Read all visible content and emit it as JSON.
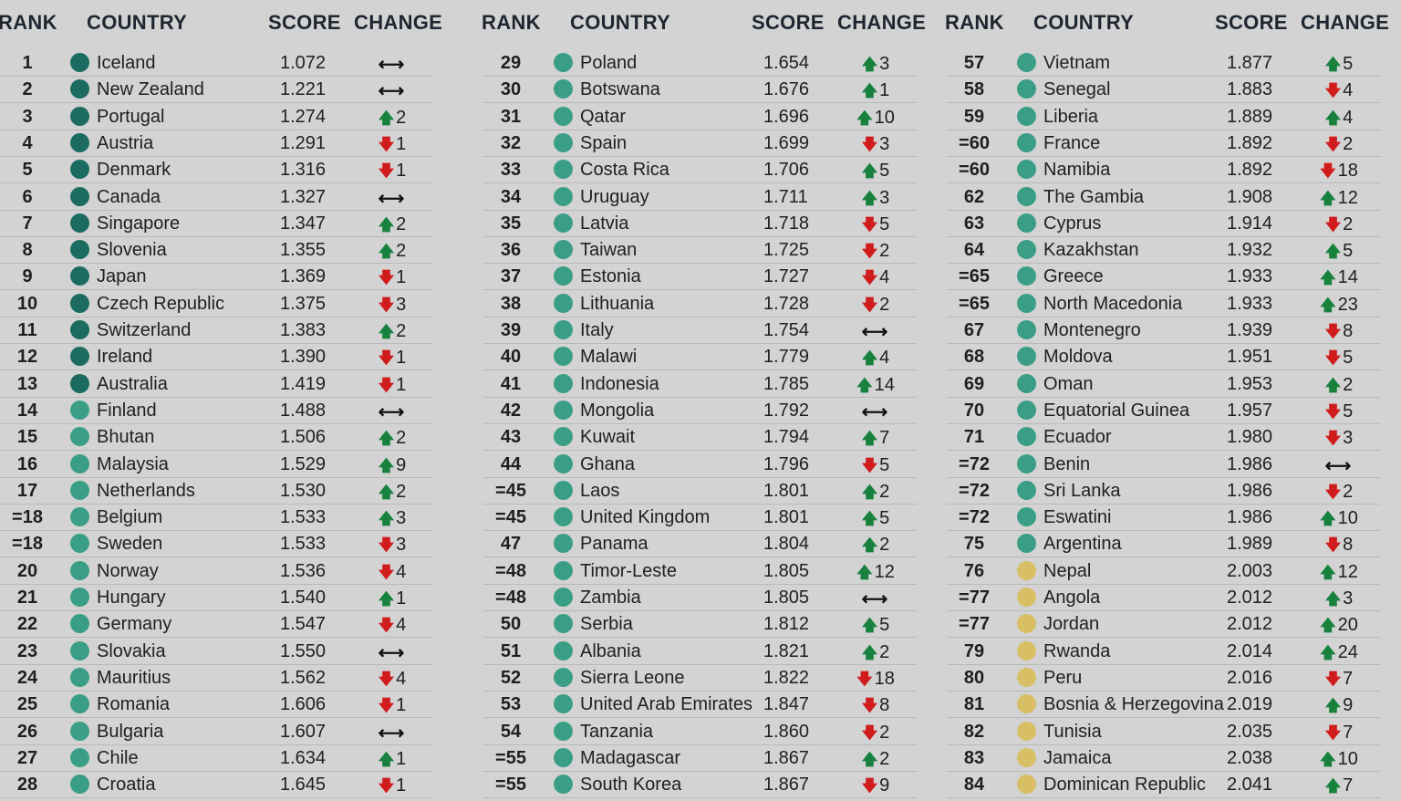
{
  "headers": {
    "rank": "RANK",
    "country": "COUNTRY",
    "score": "SCORE",
    "change": "CHANGE"
  },
  "colors": {
    "very_high": "#1c6b60",
    "high": "#3a9e86",
    "medium": "#d8bf66",
    "up": "#17813d",
    "down": "#d01c1c"
  },
  "columns": [
    [
      [
        "1",
        "Iceland",
        "1.072",
        "same",
        "",
        "very_high"
      ],
      [
        "2",
        "New Zealand",
        "1.221",
        "same",
        "",
        "very_high"
      ],
      [
        "3",
        "Portugal",
        "1.274",
        "up",
        "2",
        "very_high"
      ],
      [
        "4",
        "Austria",
        "1.291",
        "down",
        "1",
        "very_high"
      ],
      [
        "5",
        "Denmark",
        "1.316",
        "down",
        "1",
        "very_high"
      ],
      [
        "6",
        "Canada",
        "1.327",
        "same",
        "",
        "very_high"
      ],
      [
        "7",
        "Singapore",
        "1.347",
        "up",
        "2",
        "very_high"
      ],
      [
        "8",
        "Slovenia",
        "1.355",
        "up",
        "2",
        "very_high"
      ],
      [
        "9",
        "Japan",
        "1.369",
        "down",
        "1",
        "very_high"
      ],
      [
        "10",
        "Czech Republic",
        "1.375",
        "down",
        "3",
        "very_high"
      ],
      [
        "11",
        "Switzerland",
        "1.383",
        "up",
        "2",
        "very_high"
      ],
      [
        "12",
        "Ireland",
        "1.390",
        "down",
        "1",
        "very_high"
      ],
      [
        "13",
        "Australia",
        "1.419",
        "down",
        "1",
        "very_high"
      ],
      [
        "14",
        "Finland",
        "1.488",
        "same",
        "",
        "high"
      ],
      [
        "15",
        "Bhutan",
        "1.506",
        "up",
        "2",
        "high"
      ],
      [
        "16",
        "Malaysia",
        "1.529",
        "up",
        "9",
        "high"
      ],
      [
        "17",
        "Netherlands",
        "1.530",
        "up",
        "2",
        "high"
      ],
      [
        "=18",
        "Belgium",
        "1.533",
        "up",
        "3",
        "high"
      ],
      [
        "=18",
        "Sweden",
        "1.533",
        "down",
        "3",
        "high"
      ],
      [
        "20",
        "Norway",
        "1.536",
        "down",
        "4",
        "high"
      ],
      [
        "21",
        "Hungary",
        "1.540",
        "up",
        "1",
        "high"
      ],
      [
        "22",
        "Germany",
        "1.547",
        "down",
        "4",
        "high"
      ],
      [
        "23",
        "Slovakia",
        "1.550",
        "same",
        "",
        "high"
      ],
      [
        "24",
        "Mauritius",
        "1.562",
        "down",
        "4",
        "high"
      ],
      [
        "25",
        "Romania",
        "1.606",
        "down",
        "1",
        "high"
      ],
      [
        "26",
        "Bulgaria",
        "1.607",
        "same",
        "",
        "high"
      ],
      [
        "27",
        "Chile",
        "1.634",
        "up",
        "1",
        "high"
      ],
      [
        "28",
        "Croatia",
        "1.645",
        "down",
        "1",
        "high"
      ]
    ],
    [
      [
        "29",
        "Poland",
        "1.654",
        "up",
        "3",
        "high"
      ],
      [
        "30",
        "Botswana",
        "1.676",
        "up",
        "1",
        "high"
      ],
      [
        "31",
        "Qatar",
        "1.696",
        "up",
        "10",
        "high"
      ],
      [
        "32",
        "Spain",
        "1.699",
        "down",
        "3",
        "high"
      ],
      [
        "33",
        "Costa Rica",
        "1.706",
        "up",
        "5",
        "high"
      ],
      [
        "34",
        "Uruguay",
        "1.711",
        "up",
        "3",
        "high"
      ],
      [
        "35",
        "Latvia",
        "1.718",
        "down",
        "5",
        "high"
      ],
      [
        "36",
        "Taiwan",
        "1.725",
        "down",
        "2",
        "high"
      ],
      [
        "37",
        "Estonia",
        "1.727",
        "down",
        "4",
        "high"
      ],
      [
        "38",
        "Lithuania",
        "1.728",
        "down",
        "2",
        "high"
      ],
      [
        "39",
        "Italy",
        "1.754",
        "same",
        "",
        "high"
      ],
      [
        "40",
        "Malawi",
        "1.779",
        "up",
        "4",
        "high"
      ],
      [
        "41",
        "Indonesia",
        "1.785",
        "up",
        "14",
        "high"
      ],
      [
        "42",
        "Mongolia",
        "1.792",
        "same",
        "",
        "high"
      ],
      [
        "43",
        "Kuwait",
        "1.794",
        "up",
        "7",
        "high"
      ],
      [
        "44",
        "Ghana",
        "1.796",
        "down",
        "5",
        "high"
      ],
      [
        "=45",
        "Laos",
        "1.801",
        "up",
        "2",
        "high"
      ],
      [
        "=45",
        "United Kingdom",
        "1.801",
        "up",
        "5",
        "high"
      ],
      [
        "47",
        "Panama",
        "1.804",
        "up",
        "2",
        "high"
      ],
      [
        "=48",
        "Timor-Leste",
        "1.805",
        "up",
        "12",
        "high"
      ],
      [
        "=48",
        "Zambia",
        "1.805",
        "same",
        "",
        "high"
      ],
      [
        "50",
        "Serbia",
        "1.812",
        "up",
        "5",
        "high"
      ],
      [
        "51",
        "Albania",
        "1.821",
        "up",
        "2",
        "high"
      ],
      [
        "52",
        "Sierra Leone",
        "1.822",
        "down",
        "18",
        "high"
      ],
      [
        "53",
        "United Arab Emirates",
        "1.847",
        "down",
        "8",
        "high"
      ],
      [
        "54",
        "Tanzania",
        "1.860",
        "down",
        "2",
        "high"
      ],
      [
        "=55",
        "Madagascar",
        "1.867",
        "up",
        "2",
        "high"
      ],
      [
        "=55",
        "South Korea",
        "1.867",
        "down",
        "9",
        "high"
      ]
    ],
    [
      [
        "57",
        "Vietnam",
        "1.877",
        "up",
        "5",
        "high"
      ],
      [
        "58",
        "Senegal",
        "1.883",
        "down",
        "4",
        "high"
      ],
      [
        "59",
        "Liberia",
        "1.889",
        "up",
        "4",
        "high"
      ],
      [
        "=60",
        "France",
        "1.892",
        "down",
        "2",
        "high"
      ],
      [
        "=60",
        "Namibia",
        "1.892",
        "down",
        "18",
        "high"
      ],
      [
        "62",
        "The Gambia",
        "1.908",
        "up",
        "12",
        "high"
      ],
      [
        "63",
        "Cyprus",
        "1.914",
        "down",
        "2",
        "high"
      ],
      [
        "64",
        "Kazakhstan",
        "1.932",
        "up",
        "5",
        "high"
      ],
      [
        "=65",
        "Greece",
        "1.933",
        "up",
        "14",
        "high"
      ],
      [
        "=65",
        "North Macedonia",
        "1.933",
        "up",
        "23",
        "high"
      ],
      [
        "67",
        "Montenegro",
        "1.939",
        "down",
        "8",
        "high"
      ],
      [
        "68",
        "Moldova",
        "1.951",
        "down",
        "5",
        "high"
      ],
      [
        "69",
        "Oman",
        "1.953",
        "up",
        "2",
        "high"
      ],
      [
        "70",
        "Equatorial Guinea",
        "1.957",
        "down",
        "5",
        "high"
      ],
      [
        "71",
        "Ecuador",
        "1.980",
        "down",
        "3",
        "high"
      ],
      [
        "=72",
        "Benin",
        "1.986",
        "same",
        "",
        "high"
      ],
      [
        "=72",
        "Sri Lanka",
        "1.986",
        "down",
        "2",
        "high"
      ],
      [
        "=72",
        "Eswatini",
        "1.986",
        "up",
        "10",
        "high"
      ],
      [
        "75",
        "Argentina",
        "1.989",
        "down",
        "8",
        "high"
      ],
      [
        "76",
        "Nepal",
        "2.003",
        "up",
        "12",
        "medium"
      ],
      [
        "=77",
        "Angola",
        "2.012",
        "up",
        "3",
        "medium"
      ],
      [
        "=77",
        "Jordan",
        "2.012",
        "up",
        "20",
        "medium"
      ],
      [
        "79",
        "Rwanda",
        "2.014",
        "up",
        "24",
        "medium"
      ],
      [
        "80",
        "Peru",
        "2.016",
        "down",
        "7",
        "medium"
      ],
      [
        "81",
        "Bosnia & Herzegovina",
        "2.019",
        "up",
        "9",
        "medium"
      ],
      [
        "82",
        "Tunisia",
        "2.035",
        "down",
        "7",
        "medium"
      ],
      [
        "83",
        "Jamaica",
        "2.038",
        "up",
        "10",
        "medium"
      ],
      [
        "84",
        "Dominican Republic",
        "2.041",
        "up",
        "7",
        "medium"
      ]
    ]
  ]
}
